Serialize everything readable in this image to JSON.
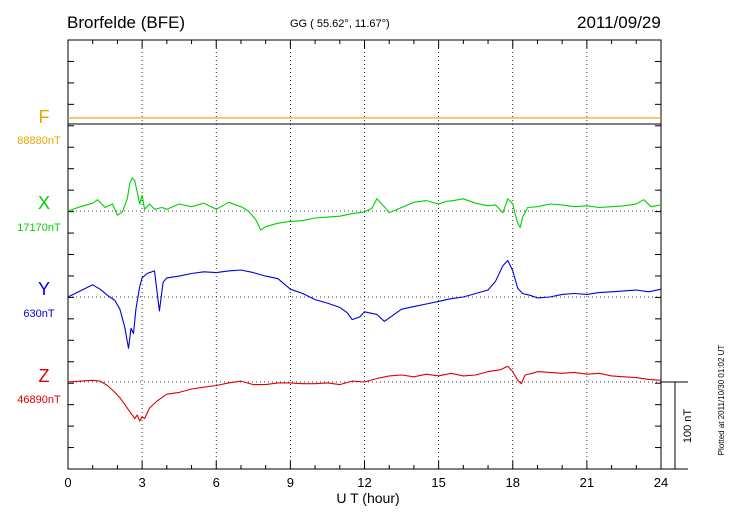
{
  "header": {
    "station": "Brorfelde (BFE)",
    "coords": "GG ( 55.62°,  11.67°)",
    "date": "2011/09/29"
  },
  "footnote": "Plotted at 2011/10/30 01:02 UT",
  "scale_label": "100 nT",
  "chart_data": {
    "type": "line",
    "xlabel": "U T (hour)",
    "xlim": [
      0,
      24
    ],
    "xticks": [
      0,
      3,
      6,
      9,
      12,
      15,
      18,
      21,
      24
    ],
    "grid": "dotted vertical at each 3 h; dotted baseline per trace",
    "units_note": "values are offsets in nT from each trace's baseline; 100 nT scale bar shown",
    "series": [
      {
        "name": "F",
        "baseline_label": "88880nT",
        "color": "#e8a400",
        "x": [
          0,
          24
        ],
        "values": [
          7,
          7
        ]
      },
      {
        "name": "X",
        "baseline_label": "17170nT",
        "color": "#00d000",
        "x": [
          0,
          0.5,
          1.0,
          1.2,
          1.5,
          1.8,
          2.0,
          2.2,
          2.4,
          2.5,
          2.6,
          2.7,
          2.8,
          2.9,
          3.0,
          3.1,
          3.3,
          3.5,
          3.8,
          4.0,
          4.5,
          5.0,
          5.5,
          6.0,
          6.5,
          7.0,
          7.3,
          7.6,
          7.8,
          8.0,
          8.5,
          9.0,
          9.5,
          10.0,
          10.5,
          11.0,
          11.5,
          11.8,
          12.0,
          12.3,
          12.5,
          12.8,
          13.0,
          13.5,
          14.0,
          14.5,
          15.0,
          15.3,
          15.6,
          16.0,
          16.5,
          17.0,
          17.3,
          17.6,
          17.8,
          18.0,
          18.1,
          18.2,
          18.3,
          18.4,
          18.6,
          19.0,
          19.5,
          20.0,
          20.5,
          21.0,
          21.5,
          22.0,
          22.5,
          23.0,
          23.3,
          23.6,
          24.0
        ],
        "values": [
          0,
          5,
          9,
          13,
          4,
          8,
          -5,
          -1,
          14,
          32,
          38,
          35,
          22,
          8,
          18,
          2,
          8,
          2,
          4,
          2,
          8,
          5,
          9,
          2,
          10,
          5,
          0,
          -10,
          -22,
          -18,
          -14,
          -12,
          -11,
          -8,
          -7,
          -6,
          -3,
          -2,
          -1,
          3,
          14,
          5,
          -2,
          4,
          10,
          12,
          8,
          11,
          12,
          14,
          9,
          6,
          7,
          -2,
          14,
          8,
          -4,
          -14,
          -19,
          -7,
          4,
          5,
          8,
          7,
          5,
          6,
          4,
          5,
          6,
          8,
          13,
          5,
          7
        ]
      },
      {
        "name": "Y",
        "baseline_label": "630nT",
        "color": "#0000e0",
        "x": [
          0,
          0.5,
          1.0,
          1.3,
          1.6,
          1.9,
          2.1,
          2.3,
          2.45,
          2.55,
          2.65,
          2.75,
          2.9,
          3.0,
          3.2,
          3.5,
          3.7,
          3.85,
          4.0,
          4.5,
          5.0,
          5.5,
          6.0,
          6.5,
          7.0,
          7.5,
          8.0,
          8.5,
          9.0,
          9.5,
          10.0,
          10.5,
          11.0,
          11.3,
          11.5,
          11.8,
          12.0,
          12.5,
          12.8,
          13.0,
          13.5,
          14.0,
          14.5,
          15.0,
          15.5,
          16.0,
          16.5,
          17.0,
          17.3,
          17.6,
          17.8,
          18.0,
          18.2,
          18.4,
          18.7,
          19.0,
          19.5,
          20.0,
          20.5,
          21.0,
          21.5,
          22.0,
          22.5,
          23.0,
          23.5,
          24.0
        ],
        "values": [
          0,
          7,
          14,
          9,
          2,
          -4,
          -14,
          -35,
          -59,
          -36,
          -42,
          -14,
          12,
          22,
          27,
          30,
          -16,
          17,
          22,
          24,
          27,
          29,
          28,
          30,
          31,
          28,
          24,
          21,
          9,
          4,
          -3,
          -7,
          -12,
          -18,
          -26,
          -23,
          -17,
          -20,
          -28,
          -24,
          -14,
          -11,
          -8,
          -5,
          -2,
          0,
          4,
          8,
          18,
          36,
          42,
          30,
          10,
          4,
          2,
          -1,
          0,
          3,
          4,
          3,
          5,
          6,
          7,
          8,
          6,
          9
        ]
      },
      {
        "name": "Z",
        "baseline_label": "46890nT",
        "color": "#e00000",
        "x": [
          0,
          0.5,
          1.0,
          1.3,
          1.6,
          1.9,
          2.1,
          2.3,
          2.5,
          2.7,
          2.8,
          2.9,
          3.0,
          3.1,
          3.3,
          3.6,
          4.0,
          4.5,
          5.0,
          5.5,
          6.0,
          6.5,
          7.0,
          7.5,
          8.0,
          8.5,
          9.0,
          9.5,
          10.0,
          10.5,
          11.0,
          11.5,
          12.0,
          12.5,
          13.0,
          13.5,
          14.0,
          14.5,
          15.0,
          15.5,
          16.0,
          16.5,
          17.0,
          17.5,
          17.8,
          18.0,
          18.2,
          18.35,
          18.5,
          18.8,
          19.0,
          19.5,
          20.0,
          20.5,
          21.0,
          21.5,
          22.0,
          22.5,
          23.0,
          23.5,
          24.0
        ],
        "values": [
          0,
          1,
          2,
          1,
          -4,
          -12,
          -18,
          -26,
          -34,
          -42,
          -38,
          -45,
          -40,
          -42,
          -30,
          -22,
          -14,
          -12,
          -8,
          -6,
          -4,
          -1,
          1,
          -3,
          -3,
          -1,
          -1,
          -2,
          -2,
          -1,
          -3,
          1,
          0,
          4,
          7,
          8,
          6,
          9,
          7,
          10,
          7,
          8,
          12,
          14,
          18,
          12,
          2,
          -2,
          8,
          10,
          12,
          11,
          10,
          11,
          9,
          10,
          7,
          6,
          5,
          3,
          2
        ]
      }
    ]
  }
}
